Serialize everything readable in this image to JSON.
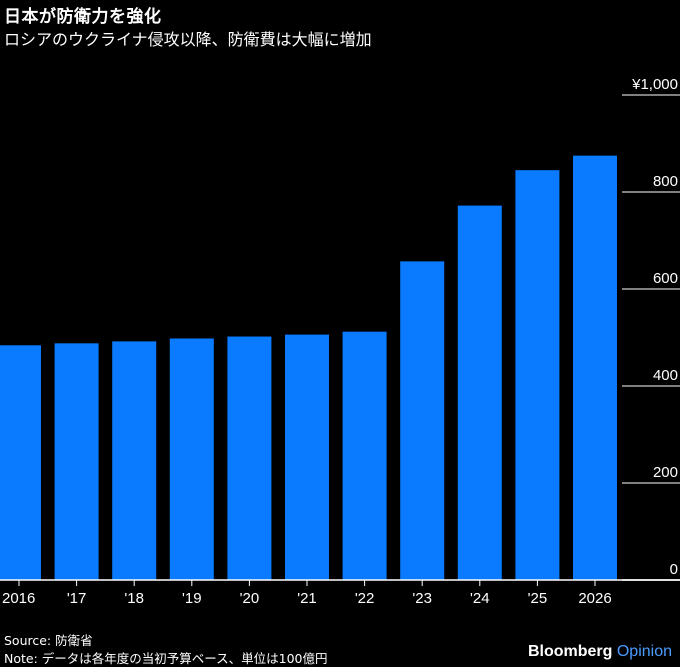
{
  "header": {
    "title": "日本が防衛力を強化",
    "subtitle": "ロシアのウクライナ侵攻以降、防衛費は大幅に増加"
  },
  "chart_data": {
    "type": "bar",
    "title": "日本が防衛力を強化",
    "subtitle": "ロシアのウクライナ侵攻以降、防衛費は大幅に増加",
    "categories": [
      "2016",
      "'17",
      "'18",
      "'19",
      "'20",
      "'21",
      "'22",
      "'23",
      "'24",
      "'25",
      "2026"
    ],
    "values": [
      484,
      488,
      492,
      498,
      502,
      506,
      512,
      657,
      772,
      845,
      875
    ],
    "ylim": [
      0,
      1000
    ],
    "yticks": [
      0,
      200,
      400,
      600,
      800,
      1000
    ],
    "ytick_labels": [
      "0",
      "200",
      "400",
      "600",
      "800",
      "¥1,000"
    ],
    "xlabel": "",
    "ylabel": "",
    "bar_color": "#0a7aff",
    "grid_color": "#ffffff"
  },
  "footer": {
    "source": "Source: 防衛省",
    "note": "Note: データは各年度の当初予算ベース、単位は100億円",
    "brand_main": "Bloomberg",
    "brand_sub": "Opinion"
  }
}
